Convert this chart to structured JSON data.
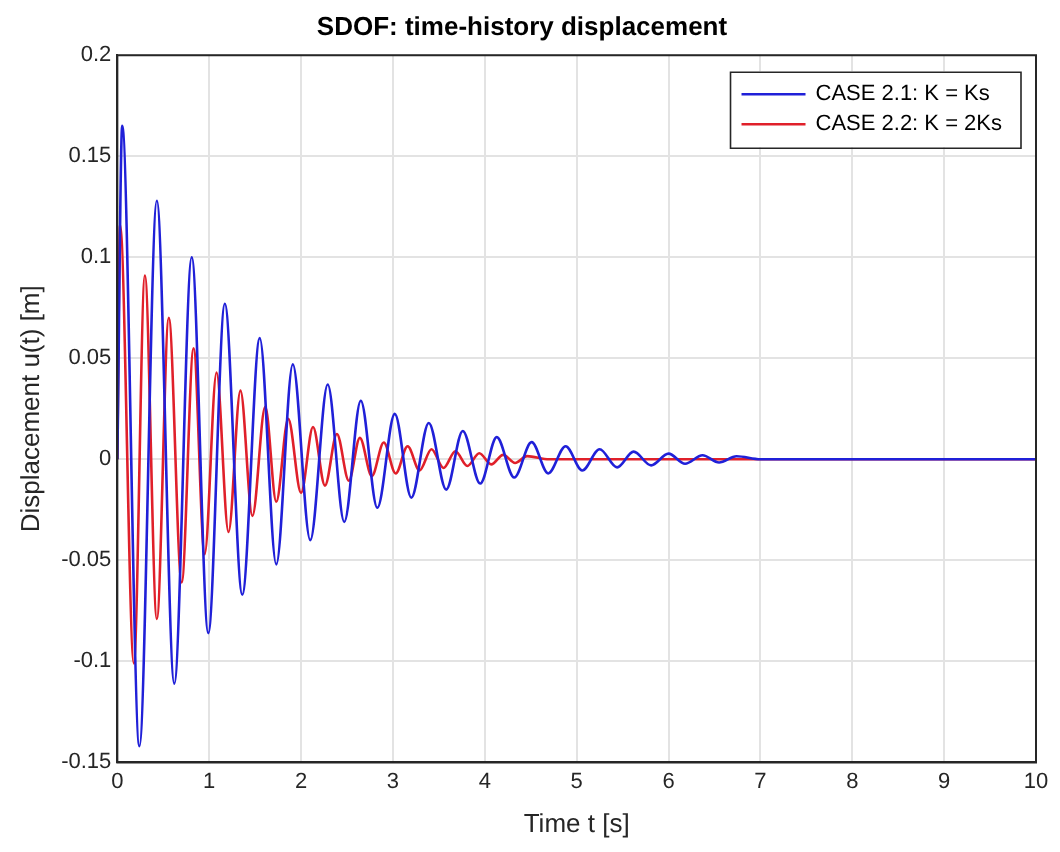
{
  "chart_data": {
    "type": "line",
    "title": "SDOF: time-history displacement",
    "xlabel": "Time t [s]",
    "ylabel": "Displacement u(t) [m]",
    "xlim": [
      0,
      10
    ],
    "xticks": [
      0,
      1,
      2,
      3,
      4,
      5,
      6,
      7,
      8,
      9,
      10
    ],
    "ylim": [
      -0.15,
      0.2
    ],
    "yticks": [
      -0.15,
      -0.1,
      -0.05,
      0,
      0.05,
      0.1,
      0.15,
      0.2
    ],
    "grid": true,
    "legend": "top right",
    "marker": "none",
    "line_style": "solid",
    "series": [
      {
        "name": "CASE 2.1: K = Ks",
        "color": "#2020d8",
        "x": [
          0,
          0.053,
          0.24,
          0.43,
          0.62,
          0.81,
          0.99,
          1.17,
          1.36,
          1.55,
          1.73,
          1.91,
          2.1,
          2.29,
          2.47,
          2.65,
          2.83,
          3.02,
          3.2,
          3.39,
          3.58,
          3.76,
          3.95,
          4.13,
          4.32,
          4.51,
          4.69,
          4.88,
          5.06,
          5.25,
          5.44,
          5.62,
          5.81,
          6.0,
          6.18,
          6.37,
          6.55,
          6.74,
          7.0,
          10
        ],
        "values": [
          0,
          0.165,
          -0.142,
          0.128,
          -0.111,
          0.1,
          -0.086,
          0.077,
          -0.067,
          0.06,
          -0.052,
          0.047,
          -0.04,
          0.037,
          -0.031,
          0.029,
          -0.024,
          0.0225,
          -0.019,
          0.018,
          -0.015,
          0.014,
          -0.012,
          0.011,
          -0.009,
          0.0085,
          -0.007,
          0.0065,
          -0.0055,
          0.005,
          -0.004,
          0.0038,
          -0.003,
          0.0028,
          -0.0022,
          0.002,
          -0.0016,
          0.0015,
          0,
          0
        ]
      },
      {
        "name": "CASE 2.2: K = 2Ks",
        "color": "#e0202a",
        "x": [
          0,
          0.03,
          0.18,
          0.3,
          0.43,
          0.56,
          0.7,
          0.83,
          0.95,
          1.08,
          1.21,
          1.34,
          1.47,
          1.61,
          1.73,
          1.86,
          2.0,
          2.13,
          2.26,
          2.39,
          2.52,
          2.64,
          2.77,
          2.9,
          3.03,
          3.16,
          3.29,
          3.42,
          3.55,
          3.68,
          3.81,
          3.94,
          4.07,
          4.2,
          4.33,
          4.46,
          4.7,
          10
        ],
        "values": [
          0,
          0.116,
          -0.101,
          0.091,
          -0.079,
          0.07,
          -0.061,
          0.055,
          -0.047,
          0.043,
          -0.036,
          0.034,
          -0.028,
          0.026,
          -0.021,
          0.02,
          -0.0166,
          0.016,
          -0.013,
          0.0125,
          -0.0106,
          0.0106,
          -0.0083,
          0.0083,
          -0.007,
          0.0065,
          -0.0055,
          0.005,
          -0.0043,
          0.004,
          -0.0033,
          0.003,
          -0.0025,
          0.0022,
          -0.0018,
          0.0016,
          0,
          0
        ]
      }
    ]
  }
}
